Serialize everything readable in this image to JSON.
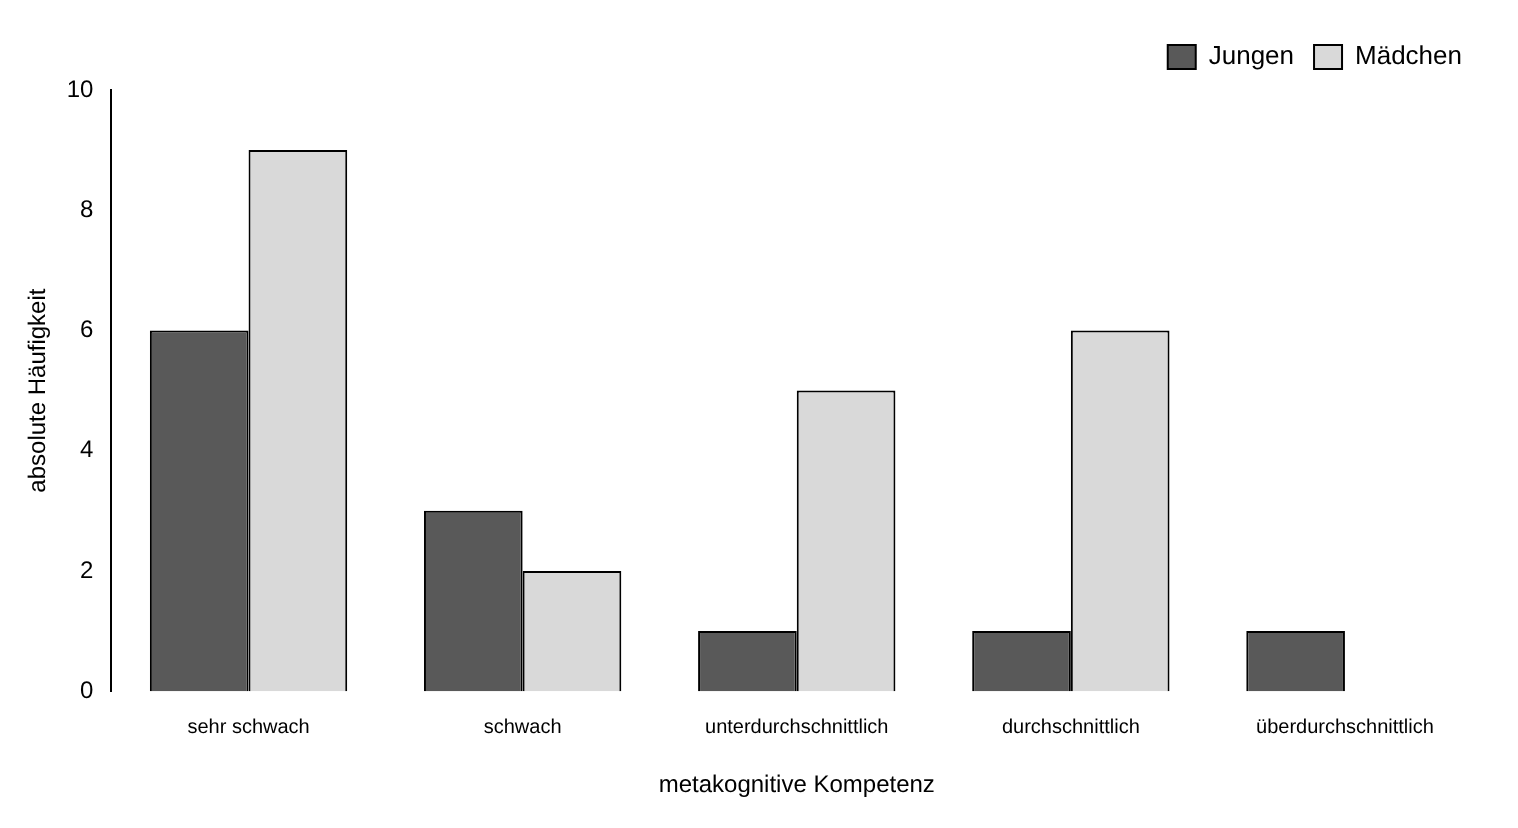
{
  "chart_data": {
    "type": "bar",
    "xlabel": "metakognitive Kompetenz",
    "ylabel": "absolute Häufigkeit",
    "categories": [
      "sehr schwach",
      "schwach",
      "unterdurchschnittlich",
      "durchschnittlich",
      "überdurchschnittlich"
    ],
    "series": [
      {
        "name": "Jungen",
        "color": "#595959",
        "values": [
          6,
          3,
          1,
          1,
          1
        ]
      },
      {
        "name": "Mädchen",
        "color": "#d9d9d9",
        "values": [
          9,
          2,
          5,
          6,
          0
        ]
      }
    ],
    "ylim": [
      0,
      10
    ],
    "yticks": [
      0,
      2,
      4,
      6,
      8,
      10
    ],
    "grid": false,
    "legend": "top right"
  }
}
